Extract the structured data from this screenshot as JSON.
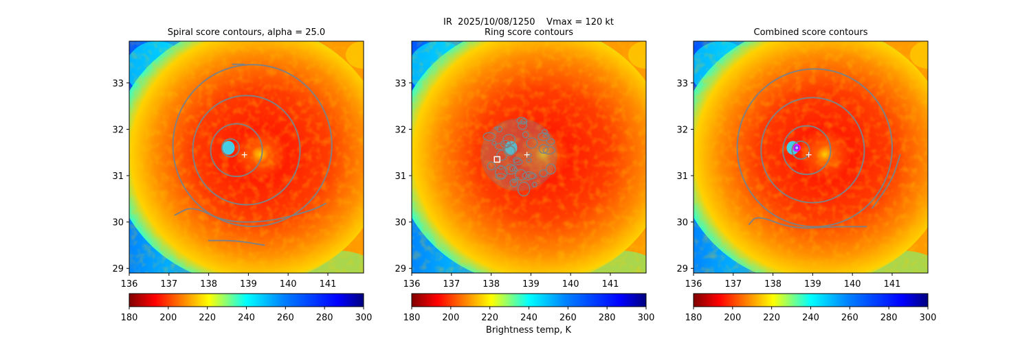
{
  "figure": {
    "suptitle": "IR  2025/10/08/1250    Vmax = 120 kt",
    "colorbar_label": "Brightness temp, K"
  },
  "chart_data": [
    {
      "type": "heatmap",
      "title": "Spiral score contours, alpha = 25.0",
      "xlim": [
        136,
        141.9
      ],
      "ylim": [
        28.9,
        33.9
      ],
      "xticks": [
        136,
        137,
        138,
        139,
        140,
        141
      ],
      "yticks": [
        29,
        30,
        31,
        32,
        33
      ],
      "colorbar": {
        "cmap": "jet_r",
        "range": [
          180,
          300
        ],
        "ticks": [
          180,
          200,
          220,
          240,
          260,
          280,
          300
        ]
      },
      "storm_center": {
        "lon": 138.9,
        "lat": 31.45
      },
      "contours": [
        {
          "kind": "circle",
          "lon": 138.55,
          "lat": 31.6,
          "r": 0.22,
          "color": "#808080"
        },
        {
          "kind": "circle",
          "lon": 138.7,
          "lat": 31.55,
          "r": 0.65,
          "color": "#808080"
        },
        {
          "kind": "circle",
          "lon": 138.95,
          "lat": 31.55,
          "r": 1.35,
          "color": "#808080"
        },
        {
          "kind": "circle",
          "lon": 139.1,
          "lat": 31.65,
          "r": 2.0,
          "color": "#808080"
        },
        {
          "kind": "spiral",
          "points": [
            [
              137.15,
              30.15
            ],
            [
              137.6,
              30.35
            ],
            [
              138.4,
              30.0
            ],
            [
              139.5,
              30.0
            ],
            [
              140.6,
              30.25
            ],
            [
              140.95,
              30.4
            ]
          ],
          "color": "#808080"
        },
        {
          "kind": "spiral",
          "points": [
            [
              138.0,
              29.6
            ],
            [
              138.7,
              29.6
            ],
            [
              139.4,
              29.5
            ]
          ],
          "color": "#808080"
        },
        {
          "kind": "spiral",
          "points": [
            [
              138.6,
              33.4
            ],
            [
              138.9,
              33.4
            ]
          ],
          "color": "#808080"
        }
      ]
    },
    {
      "type": "heatmap",
      "title": "Ring score contours",
      "xlim": [
        136,
        141.9
      ],
      "ylim": [
        28.9,
        33.9
      ],
      "xticks": [
        136,
        137,
        138,
        139,
        140,
        141
      ],
      "yticks": [
        29,
        30,
        31,
        32,
        33
      ],
      "colorbar": {
        "cmap": "jet_r",
        "range": [
          180,
          300
        ],
        "ticks": [
          180,
          200,
          220,
          240,
          260,
          280,
          300
        ]
      },
      "storm_center": {
        "lon": 138.9,
        "lat": 31.45
      },
      "best_ring_center": {
        "lon": 138.15,
        "lat": 31.35
      },
      "contours": [
        {
          "kind": "cluster",
          "lon": 138.7,
          "lat": 31.45,
          "r": 0.95,
          "color": "#808080"
        }
      ]
    },
    {
      "type": "heatmap",
      "title": "Combined score contours",
      "xlim": [
        136,
        141.9
      ],
      "ylim": [
        28.9,
        33.9
      ],
      "xticks": [
        136,
        137,
        138,
        139,
        140,
        141
      ],
      "yticks": [
        29,
        30,
        31,
        32,
        33
      ],
      "colorbar": {
        "cmap": "jet_r",
        "range": [
          180,
          300
        ],
        "ticks": [
          180,
          200,
          220,
          240,
          260,
          280,
          300
        ]
      },
      "storm_center": {
        "lon": 138.9,
        "lat": 31.45
      },
      "best_center": {
        "lon": 138.6,
        "lat": 31.6
      },
      "contours": [
        {
          "kind": "circle",
          "lon": 138.6,
          "lat": 31.6,
          "r": 0.08,
          "color": "#ff00ff"
        },
        {
          "kind": "circle",
          "lon": 138.7,
          "lat": 31.55,
          "r": 0.22,
          "color": "#808080"
        },
        {
          "kind": "circle",
          "lon": 138.85,
          "lat": 31.55,
          "r": 0.6,
          "color": "#808080"
        },
        {
          "kind": "circle",
          "lon": 139.0,
          "lat": 31.55,
          "r": 1.3,
          "color": "#808080"
        },
        {
          "kind": "circle",
          "lon": 139.05,
          "lat": 31.6,
          "r": 1.95,
          "color": "#808080"
        },
        {
          "kind": "spiral",
          "points": [
            [
              137.4,
              29.95
            ],
            [
              137.6,
              30.15
            ],
            [
              138.5,
              29.85
            ],
            [
              139.5,
              29.9
            ],
            [
              140.35,
              29.9
            ]
          ],
          "color": "#808080"
        },
        {
          "kind": "spiral",
          "points": [
            [
              140.5,
              30.3
            ],
            [
              141.0,
              30.9
            ],
            [
              141.2,
              31.45
            ]
          ],
          "color": "#808080"
        }
      ]
    }
  ]
}
